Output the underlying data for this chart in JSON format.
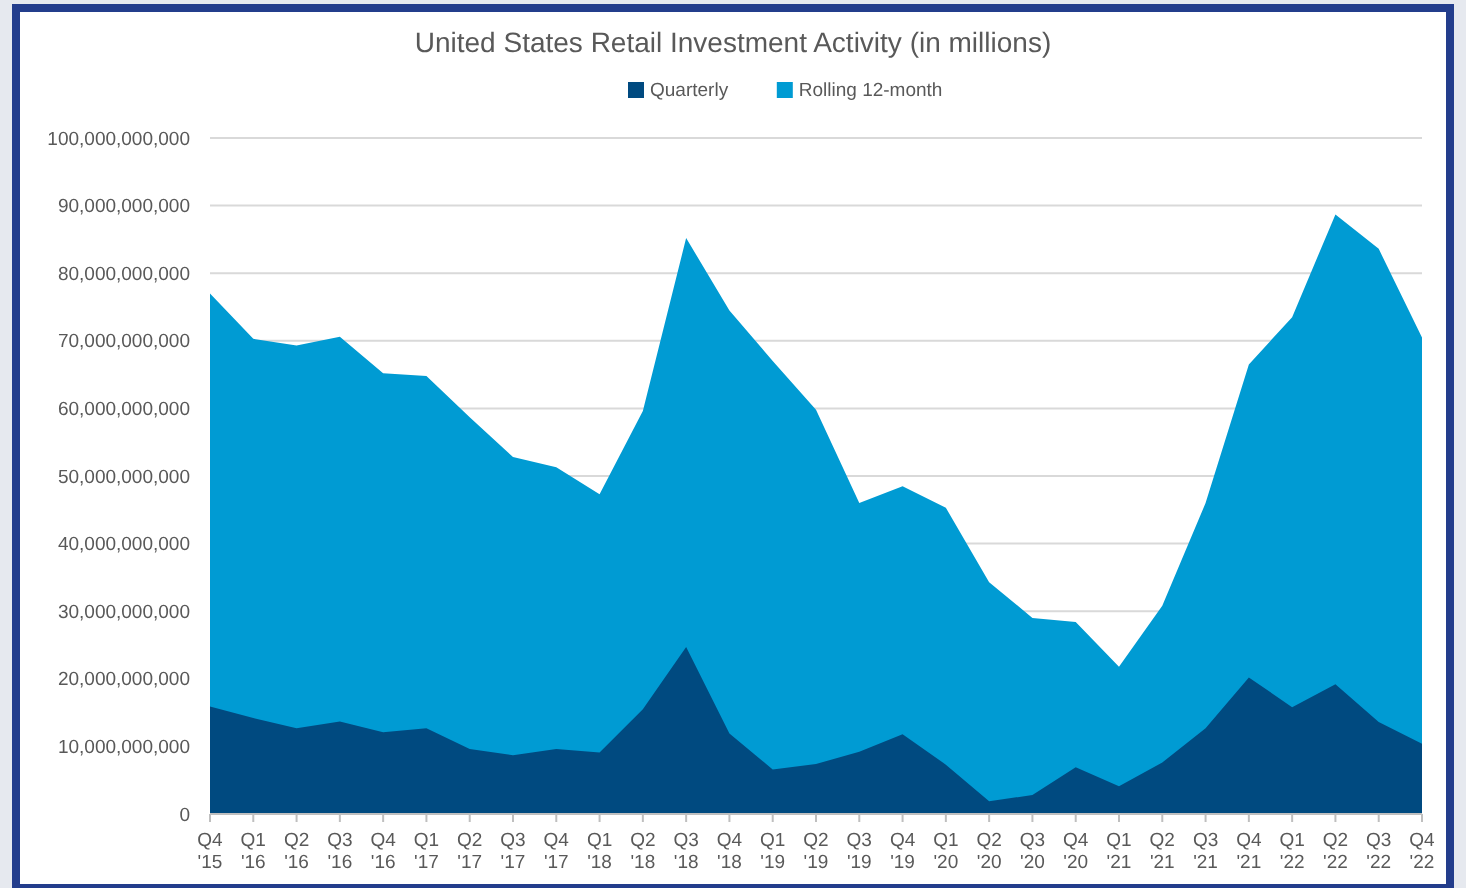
{
  "chart_data": {
    "type": "area",
    "title": "United States Retail Investment Activity (in millions)",
    "categories": [
      "Q4\n'15",
      "Q1\n'16",
      "Q2\n'16",
      "Q3\n'16",
      "Q4\n'16",
      "Q1\n'17",
      "Q2\n'17",
      "Q3\n'17",
      "Q4\n'17",
      "Q1\n'18",
      "Q2\n'18",
      "Q3\n'18",
      "Q4\n'18",
      "Q1\n'19",
      "Q2\n'19",
      "Q3\n'19",
      "Q4\n'19",
      "Q1\n'20",
      "Q2\n'20",
      "Q3\n'20",
      "Q4\n'20",
      "Q1\n'21",
      "Q2\n'21",
      "Q3\n'21",
      "Q4\n'21",
      "Q1\n'22",
      "Q2\n'22",
      "Q3\n'22",
      "Q4\n'22"
    ],
    "series": [
      {
        "name": "Quarterly",
        "color": "#004a80",
        "values": [
          15900000000,
          14200000000,
          12700000000,
          13700000000,
          12100000000,
          12700000000,
          9600000000,
          8700000000,
          9600000000,
          9100000000,
          15500000000,
          24700000000,
          11900000000,
          6600000000,
          7400000000,
          9200000000,
          11800000000,
          7300000000,
          1900000000,
          2800000000,
          6900000000,
          4100000000,
          7600000000,
          12700000000,
          20200000000,
          15800000000,
          19200000000,
          13600000000,
          10400000000
        ]
      },
      {
        "name": "Rolling 12-month",
        "color": "#009bd3",
        "values": [
          77000000000,
          70300000000,
          69300000000,
          70600000000,
          65200000000,
          64800000000,
          58700000000,
          52800000000,
          51300000000,
          47300000000,
          59600000000,
          85200000000,
          74500000000,
          67000000000,
          59800000000,
          46000000000,
          48500000000,
          45300000000,
          34300000000,
          29000000000,
          28400000000,
          21800000000,
          30800000000,
          46000000000,
          66500000000,
          73500000000,
          88700000000,
          83600000000,
          70500000000
        ]
      }
    ],
    "ylim": [
      0,
      100000000000
    ],
    "yticks": [
      {
        "value": 0,
        "label": "0"
      },
      {
        "value": 10000000000,
        "label": "10,000,000,000"
      },
      {
        "value": 20000000000,
        "label": "20,000,000,000"
      },
      {
        "value": 30000000000,
        "label": "30,000,000,000"
      },
      {
        "value": 40000000000,
        "label": "40,000,000,000"
      },
      {
        "value": 50000000000,
        "label": "50,000,000,000"
      },
      {
        "value": 60000000000,
        "label": "60,000,000,000"
      },
      {
        "value": 70000000000,
        "label": "70,000,000,000"
      },
      {
        "value": 80000000000,
        "label": "80,000,000,000"
      },
      {
        "value": 90000000000,
        "label": "90,000,000,000"
      },
      {
        "value": 100000000000,
        "label": "100,000,000,000"
      }
    ],
    "grid": "y",
    "legend": "top"
  }
}
